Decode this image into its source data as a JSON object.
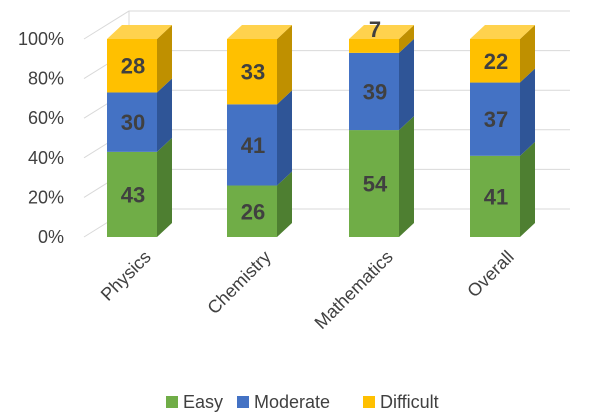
{
  "chart_data": {
    "type": "bar",
    "stacked": true,
    "percent": true,
    "style": "3d-column",
    "categories": [
      "Physics",
      "Chemistry",
      "Mathematics",
      "Overall"
    ],
    "series": [
      {
        "name": "Easy",
        "values": [
          43,
          26,
          54,
          41
        ],
        "color": "#70AD47",
        "side": "#4E7F31",
        "top": "#8DC46A"
      },
      {
        "name": "Moderate",
        "values": [
          30,
          41,
          39,
          37
        ],
        "color": "#4472C4",
        "side": "#2F5597",
        "top": "#6A8FD6"
      },
      {
        "name": "Difficult",
        "values": [
          28,
          33,
          7,
          22
        ],
        "color": "#FFC000",
        "side": "#BF9000",
        "top": "#FFD24D"
      }
    ],
    "yticks": [
      "0%",
      "20%",
      "40%",
      "60%",
      "80%",
      "100%"
    ],
    "ylim": [
      0,
      100
    ],
    "legend": "bottom",
    "grid": true
  }
}
